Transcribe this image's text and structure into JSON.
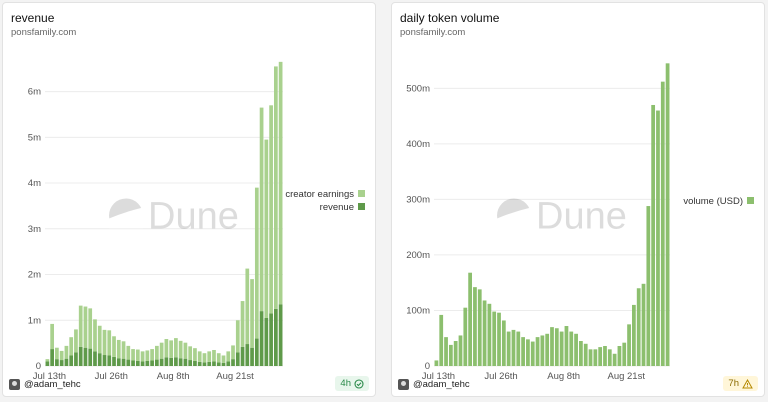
{
  "panels": [
    {
      "title": "revenue",
      "subtitle": "ponsfamily.com",
      "author": "@adam_tehc",
      "badge": "4h",
      "badge_state": "ok",
      "badge_icon": "check-circle-icon",
      "watermark": "Dune"
    },
    {
      "title": "daily token volume",
      "subtitle": "ponsfamily.com",
      "author": "@adam_tehc",
      "badge": "7h",
      "badge_state": "warn",
      "badge_icon": "warning-icon",
      "watermark": "Dune"
    }
  ],
  "colors": {
    "creator_earnings": "#a9d18e",
    "revenue": "#5f9a4a",
    "volume": "#8cbf6e",
    "grid": "#ececec",
    "axis_text": "#555555"
  },
  "chart_data": [
    {
      "type": "bar",
      "stacked": true,
      "ytick_labels": [
        "0",
        "1m",
        "2m",
        "3m",
        "4m",
        "5m",
        "6m"
      ],
      "yticks": [
        0,
        1000000,
        2000000,
        3000000,
        4000000,
        5000000,
        6000000
      ],
      "ylim": [
        0,
        6800000
      ],
      "xtick_labels": [
        "Jul 13th",
        "Jul 26th",
        "Aug 8th",
        "Aug 21st"
      ],
      "xtick_index": [
        0,
        13,
        26,
        39
      ],
      "legend_position": "right",
      "series": [
        {
          "name": "creator earnings",
          "color": "#a9d18e",
          "values": [
            50000,
            550000,
            250000,
            200000,
            280000,
            400000,
            500000,
            900000,
            900000,
            880000,
            700000,
            600000,
            550000,
            550000,
            450000,
            400000,
            380000,
            300000,
            250000,
            250000,
            220000,
            230000,
            250000,
            300000,
            350000,
            400000,
            380000,
            420000,
            380000,
            350000,
            300000,
            280000,
            230000,
            200000,
            230000,
            250000,
            200000,
            160000,
            220000,
            300000,
            700000,
            1000000,
            1650000,
            1500000,
            3300000,
            4450000,
            3900000,
            4550000,
            5300000,
            5300000
          ]
        },
        {
          "name": "revenue",
          "color": "#5f9a4a",
          "values": [
            100000,
            370000,
            150000,
            130000,
            160000,
            230000,
            300000,
            420000,
            400000,
            380000,
            320000,
            280000,
            240000,
            230000,
            200000,
            170000,
            160000,
            140000,
            120000,
            110000,
            100000,
            110000,
            120000,
            140000,
            160000,
            190000,
            180000,
            190000,
            170000,
            160000,
            130000,
            110000,
            90000,
            80000,
            90000,
            100000,
            80000,
            70000,
            100000,
            150000,
            300000,
            420000,
            480000,
            400000,
            600000,
            1200000,
            1050000,
            1150000,
            1250000,
            1350000
          ]
        }
      ]
    },
    {
      "type": "bar",
      "ytick_labels": [
        "0",
        "100m",
        "200m",
        "300m",
        "400m",
        "500m"
      ],
      "yticks": [
        0,
        100000000,
        200000000,
        300000000,
        400000000,
        500000000
      ],
      "ylim": [
        0,
        560000000
      ],
      "xtick_labels": [
        "Jul 13th",
        "Jul 26th",
        "Aug 8th",
        "Aug 21st"
      ],
      "xtick_index": [
        0,
        13,
        26,
        39
      ],
      "legend_position": "right",
      "series": [
        {
          "name": "volume (USD)",
          "color": "#8cbf6e",
          "values": [
            10000000,
            92000000,
            52000000,
            38000000,
            45000000,
            55000000,
            105000000,
            168000000,
            142000000,
            138000000,
            118000000,
            112000000,
            98000000,
            96000000,
            82000000,
            62000000,
            65000000,
            62000000,
            52000000,
            48000000,
            44000000,
            52000000,
            55000000,
            58000000,
            70000000,
            68000000,
            62000000,
            72000000,
            62000000,
            58000000,
            45000000,
            40000000,
            30000000,
            30000000,
            34000000,
            36000000,
            30000000,
            22000000,
            36000000,
            42000000,
            75000000,
            110000000,
            140000000,
            148000000,
            288000000,
            470000000,
            460000000,
            512000000,
            545000000
          ]
        }
      ]
    }
  ]
}
